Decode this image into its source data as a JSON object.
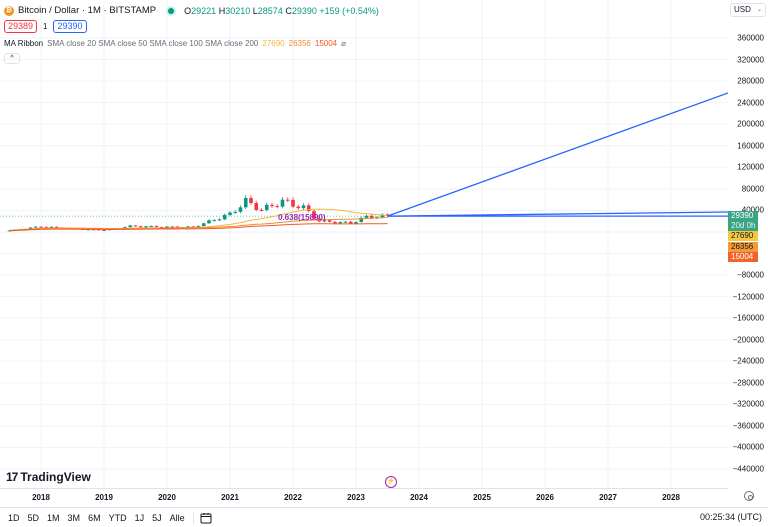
{
  "header": {
    "symbol_title": "Bitcoin / Dollar · 1M · BITSTAMP",
    "symbol_icon": "bitcoin-icon",
    "ohlc": {
      "open_label": "O",
      "open": "29221",
      "high_label": "H",
      "high": "30210",
      "low_label": "L",
      "low": "28574",
      "close_label": "C",
      "close": "29390",
      "change": "+159 (+0.54%)"
    },
    "sell_price": "29389",
    "spread": "1",
    "buy_price": "29390"
  },
  "indicator": {
    "name": "MA Ribbon",
    "params": "SMA close 20 SMA close 50 SMA close 100 SMA close 200",
    "values": [
      "27690",
      "26356",
      "15004"
    ],
    "value_colors": [
      "#f5b73b",
      "#f28b35",
      "#f05a28"
    ],
    "hidden_icon": "⌀",
    "collapse_icon": "^"
  },
  "currency_select": {
    "value": "USD",
    "chevron": "⌄"
  },
  "price_tags": [
    {
      "value": "29390",
      "sub": "20d 0h",
      "bg": "#3aa585",
      "fg": "#ffffff"
    },
    {
      "value": "27690",
      "bg": "#f5c842",
      "fg": "#131722"
    },
    {
      "value": "26356",
      "bg": "#f39a3a",
      "fg": "#131722"
    },
    {
      "value": "15004",
      "bg": "#f0642a",
      "fg": "#ffffff"
    }
  ],
  "fib_label": "0.638(15890)",
  "branding": {
    "logo_text": "TradingView",
    "logo_glyph": "17"
  },
  "bottom_bar": {
    "ranges": [
      "1D",
      "5D",
      "1M",
      "3M",
      "6M",
      "YTD",
      "1J",
      "5J",
      "Alle"
    ],
    "calendar_icon": "calendar-goto-icon",
    "clock": "00:25:34 (UTC)"
  },
  "chart_data": {
    "type": "line",
    "title": "Bitcoin / Dollar · 1M · BITSTAMP",
    "xlabel": "",
    "ylabel": "USD",
    "x_ticks": [
      "2018",
      "2019",
      "2020",
      "2021",
      "2022",
      "2023",
      "2024",
      "2025",
      "2026",
      "2027",
      "2028"
    ],
    "y_ticks": [
      360000,
      320000,
      280000,
      240000,
      200000,
      160000,
      120000,
      80000,
      40000,
      -80000,
      -120000,
      -160000,
      -200000,
      -240000,
      -280000,
      -320000,
      -360000,
      -400000,
      -440000
    ],
    "ylim": [
      -460000,
      380000
    ],
    "grid": true,
    "candlestick_monthly_close_approx": {
      "x": [
        "2017-07",
        "2018-01",
        "2018-06",
        "2019-01",
        "2019-06",
        "2020-01",
        "2020-06",
        "2021-01",
        "2021-04",
        "2021-07",
        "2021-11",
        "2022-03",
        "2022-06",
        "2022-12",
        "2023-03",
        "2023-07"
      ],
      "close": [
        2800,
        10200,
        6400,
        3500,
        10800,
        9300,
        9100,
        33000,
        57000,
        41000,
        57000,
        45000,
        20000,
        16500,
        28000,
        29390
      ]
    },
    "series": [
      {
        "name": "SMA 20",
        "color": "#f5b73b",
        "last": 27690
      },
      {
        "name": "SMA 50",
        "color": "#f28b35",
        "last": 26356
      },
      {
        "name": "SMA 100",
        "color": "#f05a28",
        "last": 15004
      },
      {
        "name": "Trend line (projection up)",
        "color": "#2962ff",
        "from": {
          "x": "2023-07",
          "y": 29390
        },
        "to": {
          "x": "2028-10",
          "y": 258000
        }
      },
      {
        "name": "Trend line (flat 1)",
        "color": "#2962ff",
        "from": {
          "x": "2023-07",
          "y": 29390
        },
        "to": {
          "x": "2028-10",
          "y": 37000
        }
      },
      {
        "name": "Trend line (flat 2)",
        "color": "#2962ff",
        "from": {
          "x": "2023-07",
          "y": 29390
        },
        "to": {
          "x": "2028-10",
          "y": 29390
        }
      }
    ],
    "last_price": 29390,
    "last_price_countdown": "20d 0h"
  }
}
